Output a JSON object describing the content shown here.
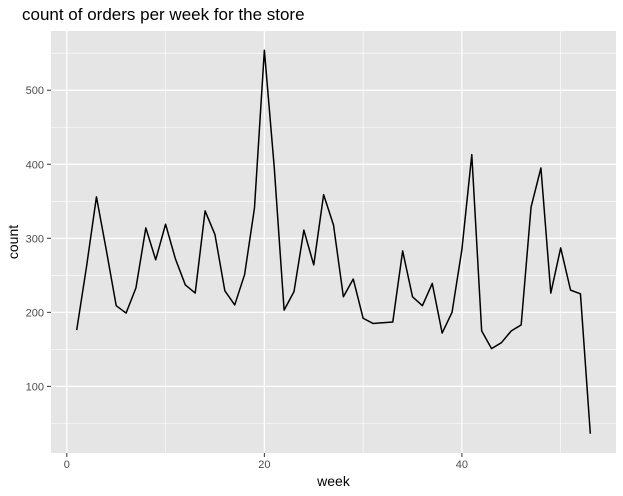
{
  "chart_data": {
    "type": "line",
    "title": "count of orders per week for the store",
    "xlabel": "week",
    "ylabel": "count",
    "xlim": [
      -1.6,
      55.6
    ],
    "ylim": [
      10,
      580
    ],
    "x_ticks": [
      0,
      20,
      40
    ],
    "x_tick_labels": [
      "0",
      "20",
      "40"
    ],
    "x_minor_ticks": [
      10,
      30,
      50
    ],
    "y_ticks": [
      100,
      200,
      300,
      400,
      500
    ],
    "y_tick_labels": [
      "100",
      "200",
      "300",
      "400",
      "500"
    ],
    "y_minor_ticks": [
      50,
      150,
      250,
      350,
      450,
      550
    ],
    "grid": true,
    "background": "#e5e5e5",
    "gridline_color": "#ffffff",
    "line_color": "#000000",
    "series": [
      {
        "x": [
          1,
          2,
          3,
          4,
          5,
          6,
          7,
          8,
          9,
          10,
          11,
          12,
          13,
          14,
          15,
          16,
          17,
          18,
          19,
          20,
          21,
          22,
          23,
          24,
          25,
          26,
          27,
          28,
          29,
          30,
          31,
          32,
          33,
          34,
          35,
          36,
          37,
          38,
          39,
          40,
          41,
          42,
          43,
          44,
          45,
          46,
          47,
          48,
          49,
          50,
          51,
          52,
          53
        ],
        "values": [
          176,
          262,
          356,
          284,
          209,
          199,
          233,
          314,
          271,
          319,
          272,
          237,
          226,
          337,
          305,
          229,
          210,
          251,
          341,
          554,
          396,
          203,
          228,
          311,
          264,
          359,
          318,
          221,
          245,
          192,
          185,
          186,
          187,
          283,
          221,
          209,
          239,
          172,
          200,
          285,
          413,
          175,
          151,
          159,
          175,
          183,
          342,
          395,
          226,
          287,
          230,
          225,
          36
        ]
      }
    ]
  }
}
